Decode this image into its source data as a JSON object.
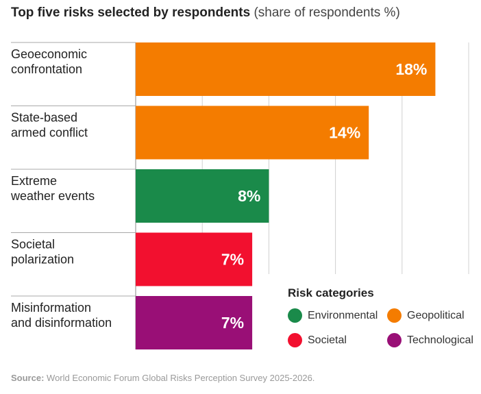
{
  "title": {
    "main": "Top five risks selected by respondents",
    "sub": "(share of respondents %)"
  },
  "chart_data": {
    "type": "bar",
    "orientation": "horizontal",
    "categories": [
      [
        "Geoeconomic",
        "confrontation"
      ],
      [
        "State-based",
        "armed conflict"
      ],
      [
        "Extreme",
        "weather events"
      ],
      [
        "Societal",
        "polarization"
      ],
      [
        "Misinformation",
        "and disinformation"
      ]
    ],
    "values": [
      18,
      14,
      8,
      7,
      7
    ],
    "value_labels": [
      "18%",
      "14%",
      "8%",
      "7%",
      "7%"
    ],
    "bar_categories": [
      "Geopolitical",
      "Geopolitical",
      "Environmental",
      "Societal",
      "Technological"
    ],
    "xlim": [
      0,
      20
    ],
    "grid": true,
    "legend_placement": "bottom-right"
  },
  "legend": {
    "title": "Risk categories",
    "items": [
      {
        "label": "Environmental",
        "color": "#1a8a4a"
      },
      {
        "label": "Geopolitical",
        "color": "#f47c00"
      },
      {
        "label": "Societal",
        "color": "#f2102f"
      },
      {
        "label": "Technological",
        "color": "#990f76"
      }
    ]
  },
  "source": {
    "label": "Source:",
    "text": "World Economic Forum Global Risks Perception Survey 2025-2026."
  }
}
